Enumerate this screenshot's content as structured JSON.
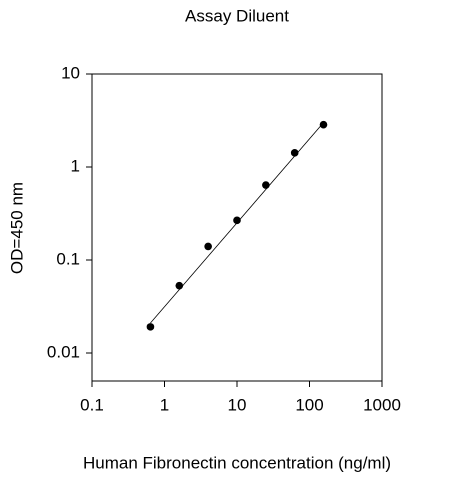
{
  "chart_data": {
    "type": "scatter",
    "title": "Assay Diluent",
    "x_label": "Human Fibronectin concentration (ng/ml)",
    "y_label": "OD=450 nm",
    "x": [
      0.64,
      1.6,
      4,
      10,
      25,
      62.5,
      156
    ],
    "values": [
      0.0191,
      0.053,
      0.14,
      0.267,
      0.64,
      1.42,
      2.85
    ],
    "color": "#000000",
    "fit_line": {
      "x": [
        0.64,
        156
      ],
      "values": [
        0.021,
        3.0
      ]
    },
    "xlog": true,
    "ylog": true,
    "xlim": [
      0.1,
      1000
    ],
    "ylim": [
      0.005,
      10
    ],
    "xticks": [
      0.1,
      1,
      10,
      100,
      1000
    ],
    "yticks": [
      0.01,
      0.1,
      1,
      10
    ]
  }
}
